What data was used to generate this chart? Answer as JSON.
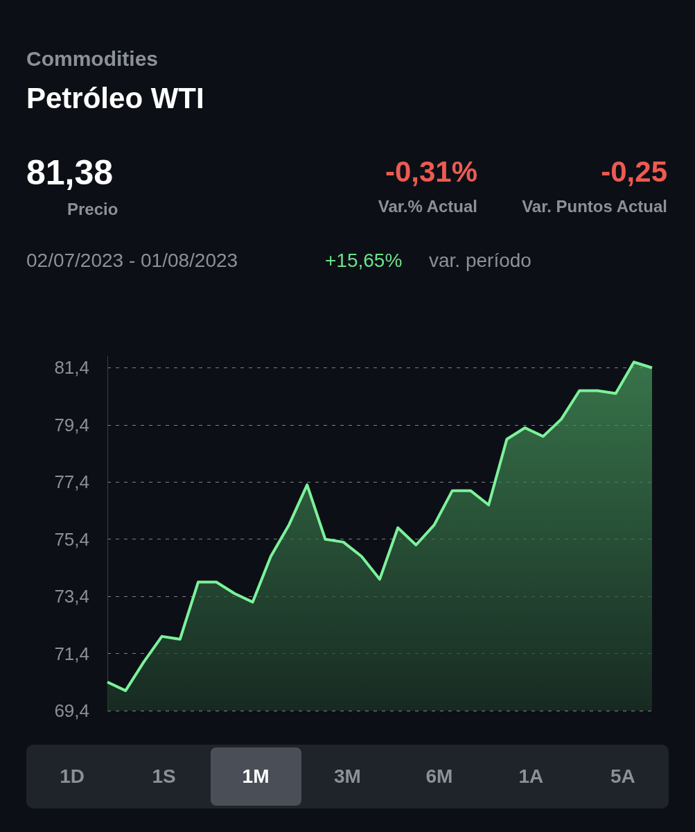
{
  "chart_data": {
    "type": "area",
    "title": "Petróleo WTI",
    "subtitle": "Commodities",
    "annotations": [
      "81,38",
      "Precio",
      "-0,31%",
      "Var.% Actual",
      "-0,25",
      "Var. Puntos Actual",
      "02/07/2023 - 01/08/2023",
      "+15,65%",
      "var. período",
      "1D",
      "1S",
      "1M",
      "3M",
      "6M",
      "1A",
      "5A"
    ],
    "categories": [
      null,
      null,
      null,
      null,
      null,
      null,
      null,
      null,
      null,
      null,
      null,
      null,
      null,
      null,
      null,
      null,
      null,
      null,
      null,
      null,
      null,
      null,
      null,
      null,
      null,
      null,
      null,
      null,
      null,
      null,
      null
    ],
    "values": [
      70.4,
      70.1,
      71.1,
      72.0,
      71.9,
      73.9,
      73.9,
      73.5,
      73.2,
      74.8,
      75.9,
      77.3,
      75.4,
      75.3,
      74.8,
      74.0,
      75.8,
      75.2,
      75.9,
      77.1,
      77.1,
      76.6,
      78.9,
      79.3,
      79.0,
      79.6,
      80.6,
      80.6,
      80.5,
      81.6,
      81.4
    ],
    "color": "#7cf29a",
    "ylim": [
      69.4,
      81.8
    ],
    "yticks": [
      {
        "value": 69.4,
        "label": "69,4"
      },
      {
        "value": 71.4,
        "label": "71,4"
      },
      {
        "value": 73.4,
        "label": "73,4"
      },
      {
        "value": 75.4,
        "label": "75,4"
      },
      {
        "value": 77.4,
        "label": "77,4"
      },
      {
        "value": 79.4,
        "label": "79,4"
      },
      {
        "value": 81.4,
        "label": "81,4"
      }
    ],
    "grid": "y",
    "marker": "none",
    "line_style": "solid",
    "tick_labels": "y"
  }
}
